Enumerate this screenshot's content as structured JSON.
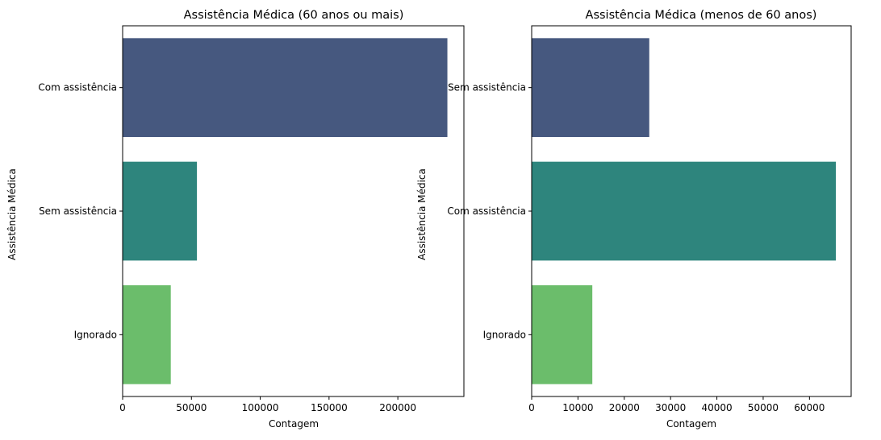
{
  "chart_data": [
    {
      "type": "bar",
      "orientation": "horizontal",
      "title": "Assistência Médica (60 anos ou mais)",
      "xlabel": "Contagem",
      "ylabel": "Assistência Médica",
      "categories": [
        "Com assistência",
        "Sem assistência",
        "Ignorado"
      ],
      "values": [
        236000,
        54000,
        35000
      ],
      "colors": [
        "#46587f",
        "#2e857d",
        "#6bbd6b"
      ],
      "xlim": [
        0,
        248000
      ],
      "xticks": [
        0,
        50000,
        100000,
        150000,
        200000
      ],
      "xtick_labels": [
        "0",
        "50000",
        "100000",
        "150000",
        "200000"
      ],
      "grid": false
    },
    {
      "type": "bar",
      "orientation": "horizontal",
      "title": "Assistência Médica (menos de 60 anos)",
      "xlabel": "Contagem",
      "ylabel": "Assistência Médica",
      "categories": [
        "Sem assistência",
        "Com assistência",
        "Ignorado"
      ],
      "values": [
        25400,
        65700,
        13100
      ],
      "colors": [
        "#46587f",
        "#2e857d",
        "#6bbd6b"
      ],
      "xlim": [
        0,
        69000
      ],
      "xticks": [
        0,
        10000,
        20000,
        30000,
        40000,
        50000,
        60000
      ],
      "xtick_labels": [
        "0",
        "10000",
        "20000",
        "30000",
        "40000",
        "50000",
        "60000"
      ],
      "grid": false
    }
  ]
}
